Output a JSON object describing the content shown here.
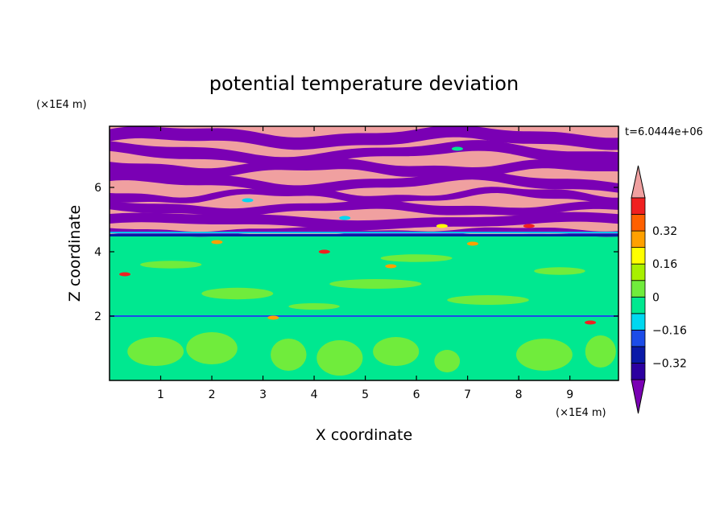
{
  "chart_data": {
    "type": "heatmap",
    "title": "potential temperature deviation",
    "time_label": "t=6.0444e+06",
    "xlabel": "X coordinate",
    "ylabel": "Z coordinate",
    "x_unit": "(×1E4 m)",
    "y_unit": "(×1E4 m)",
    "xlim": [
      0,
      9.95
    ],
    "ylim": [
      0,
      7.9
    ],
    "x_ticks": [
      "1",
      "2",
      "3",
      "4",
      "5",
      "6",
      "7",
      "8",
      "9"
    ],
    "y_ticks": [
      "2",
      "4",
      "6"
    ],
    "colorbar": {
      "levels": [
        -0.48,
        -0.4,
        -0.32,
        -0.24,
        -0.16,
        -0.08,
        0,
        0.08,
        0.16,
        0.24,
        0.32,
        0.4,
        0.48
      ],
      "tick_labels": [
        "0.32",
        "0.16",
        "0",
        "−0.16",
        "−0.32"
      ],
      "tick_values": [
        0.32,
        0.16,
        0,
        -0.16,
        -0.32
      ],
      "colors_low_to_high": [
        "#7a00b4",
        "#2c00a0",
        "#0a1aa8",
        "#1c4ce8",
        "#00d8f0",
        "#00e890",
        "#70ec3c",
        "#a8f000",
        "#ffff00",
        "#ffa000",
        "#ff6000",
        "#f02020",
        "#f0a0a0"
      ],
      "extends": "both"
    },
    "field_description": {
      "upper_layer_z_range": [
        4.5,
        7.9
      ],
      "upper_layer_colors": [
        "#f0a0a0",
        "#7a00b4"
      ],
      "lower_layer_z_range": [
        0,
        4.5
      ],
      "lower_layer_colors": [
        "#00e890",
        "#70ec3c"
      ],
      "inversion_z": 2.0
    }
  }
}
